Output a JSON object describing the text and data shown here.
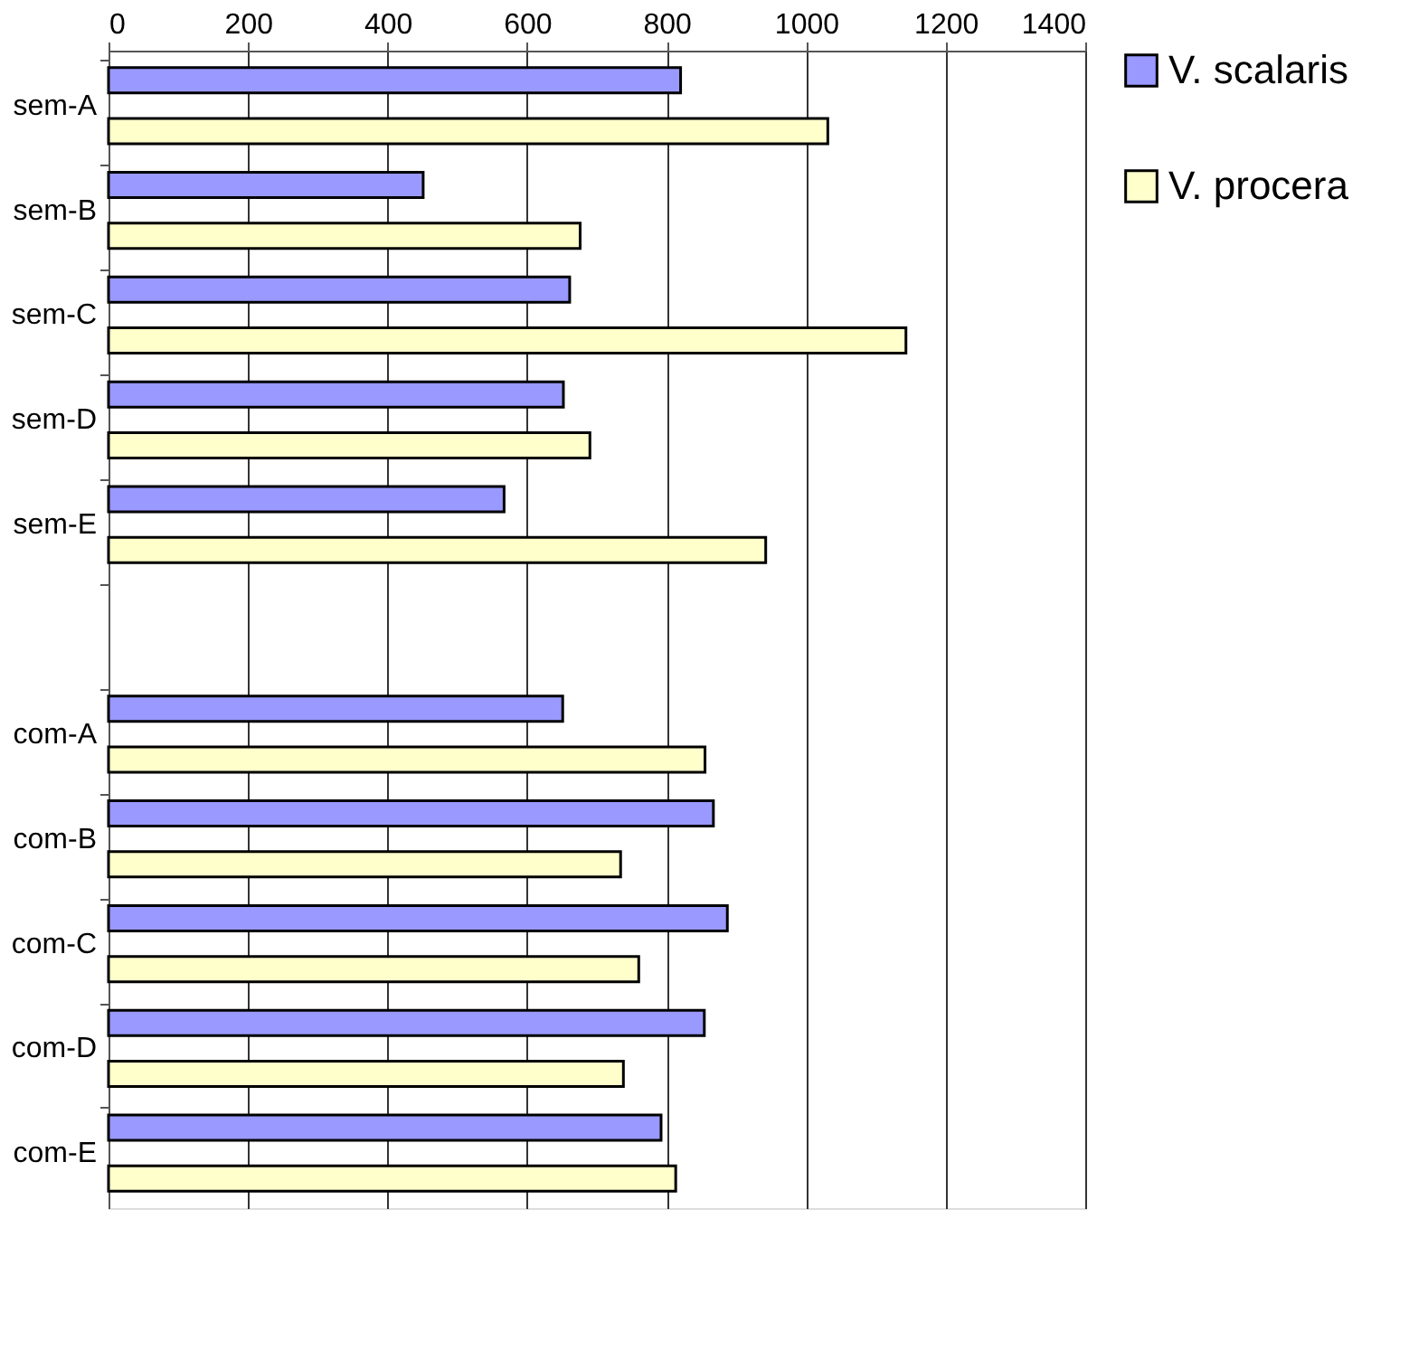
{
  "chart_data": {
    "type": "bar",
    "orientation": "horizontal",
    "categories": [
      "sem-A",
      "sem-B",
      "sem-C",
      "sem-D",
      "sem-E",
      null,
      "com-A",
      "com-B",
      "com-C",
      "com-D",
      "com-E"
    ],
    "series": [
      {
        "name": "V. scalaris",
        "color": "#9999ff",
        "values": [
          820,
          451,
          661,
          652,
          567,
          null,
          651,
          867,
          887,
          854,
          792
        ]
      },
      {
        "name": "V. procera",
        "color": "#ffffcc",
        "values": [
          1031,
          676,
          1143,
          690,
          942,
          null,
          855,
          734,
          760,
          738,
          813
        ]
      }
    ],
    "xlim": [
      0,
      1400
    ],
    "xticks": [
      0,
      200,
      400,
      600,
      800,
      1000,
      1200,
      1400
    ],
    "grid": "x",
    "legend": "right"
  }
}
